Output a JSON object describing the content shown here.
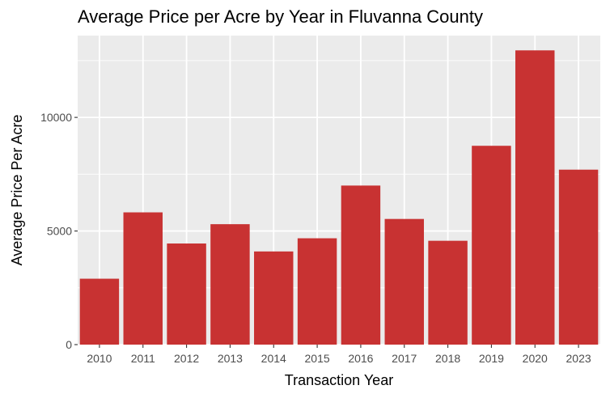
{
  "chart_data": {
    "type": "bar",
    "title": "Average Price per Acre by Year in Fluvanna County",
    "xlabel": "Transaction Year",
    "ylabel": "Average Price Per Acre",
    "categories": [
      "2010",
      "2011",
      "2012",
      "2013",
      "2014",
      "2015",
      "2016",
      "2017",
      "2018",
      "2019",
      "2020",
      "2023"
    ],
    "values": [
      2900,
      5820,
      4450,
      5300,
      4100,
      4680,
      7000,
      5530,
      4570,
      8750,
      12950,
      7700
    ],
    "ylim": [
      0,
      13600
    ],
    "yticks": [
      0,
      5000,
      10000
    ],
    "ytick_labels": [
      "0",
      "5000",
      "10000"
    ],
    "grid": true,
    "bar_color": "#c83232",
    "panel_background": "#ebebeb",
    "grid_color": "#ffffff"
  }
}
